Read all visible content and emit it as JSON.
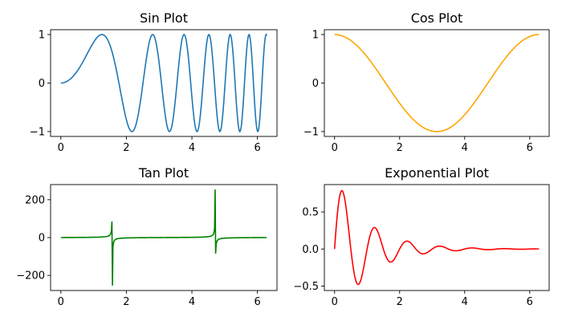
{
  "chart_data": [
    {
      "type": "line",
      "title": "Sin Plot",
      "expression": "sin(x^2)",
      "x_range": [
        0,
        6.283185307
      ],
      "n_points": 400,
      "color": "#1f77b4",
      "xlim": [
        -0.314,
        6.597
      ],
      "ylim": [
        -1.1,
        1.1
      ],
      "xticks": [
        0,
        2,
        4,
        6
      ],
      "xtick_labels": [
        "0",
        "2",
        "4",
        "6"
      ],
      "yticks": [
        -1,
        0,
        1
      ],
      "ytick_labels": [
        "−1",
        "0",
        "1"
      ],
      "grid": false
    },
    {
      "type": "line",
      "title": "Cos Plot",
      "expression": "cos(x)",
      "x_range": [
        0,
        6.283185307
      ],
      "n_points": 400,
      "color": "#ffa500",
      "xlim": [
        -0.314,
        6.597
      ],
      "ylim": [
        -1.1,
        1.1
      ],
      "xticks": [
        0,
        2,
        4,
        6
      ],
      "xtick_labels": [
        "0",
        "2",
        "4",
        "6"
      ],
      "yticks": [
        -1,
        0,
        1
      ],
      "ytick_labels": [
        "−1",
        "0",
        "1"
      ],
      "grid": false
    },
    {
      "type": "line",
      "title": "Tan Plot",
      "expression": "tan(x)",
      "x_range": [
        0,
        6.283185307
      ],
      "n_points": 400,
      "color": "#008000",
      "xlim": [
        -0.314,
        6.597
      ],
      "ylim": [
        -280,
        280
      ],
      "xticks": [
        0,
        2,
        4,
        6
      ],
      "xtick_labels": [
        "0",
        "2",
        "4",
        "6"
      ],
      "yticks": [
        -200,
        0,
        200
      ],
      "ytick_labels": [
        "−200",
        "0",
        "200"
      ],
      "grid": false
    },
    {
      "type": "line",
      "title": "Exponential Plot",
      "expression": "exp(-x)*sin(2*pi*x)",
      "x_range": [
        0,
        6.283185307
      ],
      "n_points": 400,
      "color": "#ff0000",
      "xlim": [
        -0.314,
        6.597
      ],
      "ylim": [
        -0.56,
        0.87
      ],
      "xticks": [
        0,
        2,
        4,
        6
      ],
      "xtick_labels": [
        "0",
        "2",
        "4",
        "6"
      ],
      "yticks": [
        -0.5,
        0,
        0.5
      ],
      "ytick_labels": [
        "−0.5",
        "0.0",
        "0.5"
      ],
      "grid": false
    }
  ]
}
